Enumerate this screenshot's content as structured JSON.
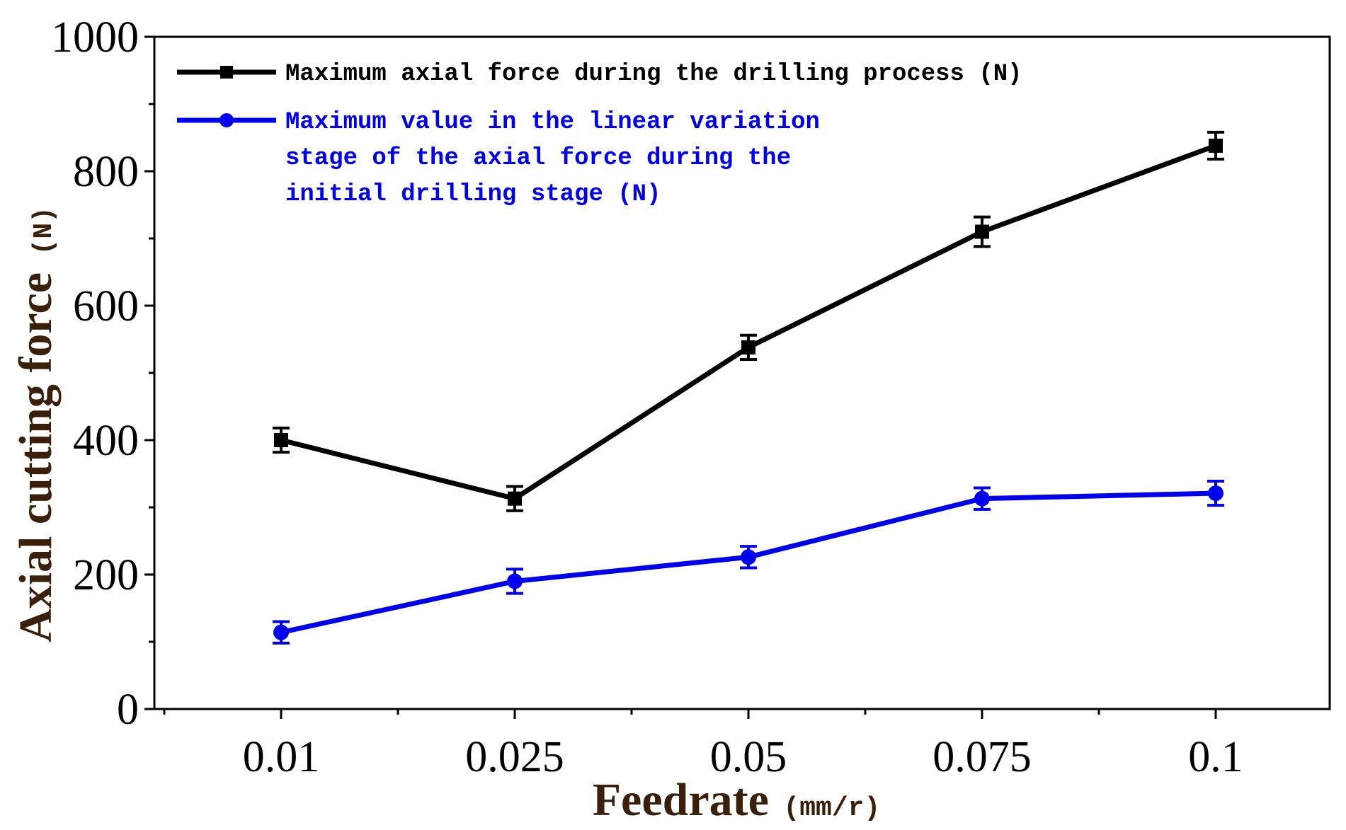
{
  "chart_data": {
    "type": "line",
    "title": "",
    "xlabel": "Feedrate",
    "xlabel_unit": "(mm/r)",
    "ylabel": "Axial cutting force",
    "ylabel_unit": "(N)",
    "categories": [
      "0.01",
      "0.025",
      "0.05",
      "0.075",
      "0.1"
    ],
    "ylim": [
      0,
      1000
    ],
    "y_ticks": [
      "0",
      "200",
      "400",
      "600",
      "800",
      "1000"
    ],
    "grid": false,
    "legend_position": "top-left",
    "series": [
      {
        "name": "Maximum axial force during the drilling process (N)",
        "legend_lines": [
          "Maximum axial force during the drilling process (N)"
        ],
        "color": "#000000",
        "marker": "square",
        "values": [
          400,
          313,
          538,
          710,
          838
        ],
        "errors": [
          18,
          18,
          18,
          22,
          20
        ]
      },
      {
        "name": "Maximum value in the linear variation stage of the axial force during the initial drilling stage (N)",
        "legend_lines": [
          "Maximum value in the linear variation",
          "stage of the axial force during the",
          "initial drilling stage (N)"
        ],
        "color": "#0000ee",
        "marker": "circle",
        "values": [
          114,
          190,
          226,
          313,
          321
        ],
        "errors": [
          16,
          18,
          16,
          16,
          18
        ]
      }
    ]
  }
}
